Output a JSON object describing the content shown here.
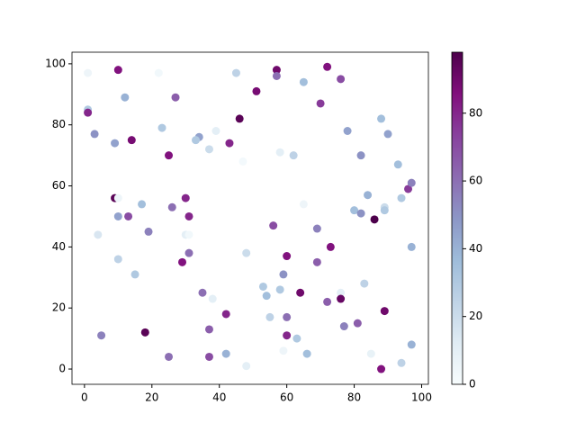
{
  "chart_data": {
    "type": "scatter",
    "x": [
      1,
      10,
      22,
      45,
      57,
      57,
      65,
      72,
      76,
      1,
      1,
      12,
      27,
      51,
      70,
      3,
      9,
      14,
      23,
      34,
      33,
      39,
      37,
      46,
      43,
      25,
      47,
      58,
      62,
      78,
      88,
      90,
      82,
      93,
      9,
      10,
      17,
      10,
      13,
      26,
      30,
      31,
      19,
      4,
      30,
      31,
      10,
      15,
      29,
      31,
      48,
      56,
      60,
      69,
      65,
      73,
      69,
      80,
      82,
      84,
      86,
      89,
      89,
      94,
      96,
      97,
      97,
      35,
      38,
      53,
      54,
      58,
      59,
      64,
      72,
      76,
      76,
      83,
      5,
      18,
      37,
      42,
      55,
      60,
      60,
      63,
      77,
      81,
      89,
      25,
      37,
      42,
      48,
      59,
      66,
      85,
      88,
      94,
      97
    ],
    "y": [
      97,
      98,
      97,
      97,
      98,
      96,
      94,
      99,
      95,
      85,
      84,
      89,
      89,
      91,
      87,
      77,
      74,
      75,
      79,
      76,
      75,
      78,
      72,
      82,
      74,
      70,
      68,
      71,
      70,
      78,
      82,
      77,
      70,
      67,
      56,
      56,
      54,
      50,
      50,
      53,
      56,
      50,
      45,
      44,
      44,
      44,
      36,
      31,
      35,
      38,
      38,
      47,
      37,
      46,
      54,
      40,
      35,
      52,
      51,
      57,
      49,
      53,
      52,
      56,
      59,
      61,
      40,
      25,
      23,
      27,
      24,
      26,
      31,
      25,
      22,
      25,
      23,
      28,
      11,
      12,
      13,
      18,
      17,
      17,
      11,
      10,
      14,
      15,
      19,
      4,
      4,
      5,
      1,
      6,
      5,
      5,
      0,
      2,
      8
    ],
    "c": [
      5,
      85,
      3,
      25,
      90,
      60,
      35,
      85,
      70,
      30,
      80,
      40,
      65,
      88,
      75,
      50,
      45,
      88,
      30,
      45,
      30,
      10,
      20,
      95,
      80,
      85,
      2,
      10,
      25,
      45,
      35,
      45,
      50,
      35,
      95,
      5,
      35,
      45,
      70,
      60,
      80,
      80,
      55,
      15,
      10,
      3,
      25,
      30,
      85,
      60,
      20,
      70,
      85,
      55,
      5,
      85,
      65,
      35,
      50,
      40,
      98,
      20,
      30,
      30,
      75,
      55,
      40,
      60,
      10,
      30,
      35,
      30,
      50,
      90,
      65,
      10,
      92,
      25,
      55,
      95,
      65,
      80,
      25,
      60,
      80,
      30,
      55,
      65,
      90,
      60,
      70,
      40,
      10,
      5,
      35,
      8,
      85,
      25,
      40
    ],
    "xlim": [
      -3.7,
      102
    ],
    "ylim": [
      -5,
      103.8
    ],
    "xticks": [
      0,
      20,
      40,
      60,
      80,
      100
    ],
    "yticks": [
      0,
      20,
      40,
      60,
      80,
      100
    ],
    "clim": [
      0,
      98
    ],
    "cticks": [
      0,
      20,
      40,
      60,
      80
    ],
    "colormap": [
      "#f7fcfd",
      "#e0ecf4",
      "#bfd3e6",
      "#9ebcda",
      "#8c96c6",
      "#8c6bb1",
      "#88419d",
      "#810f7c",
      "#4d004b"
    ]
  }
}
